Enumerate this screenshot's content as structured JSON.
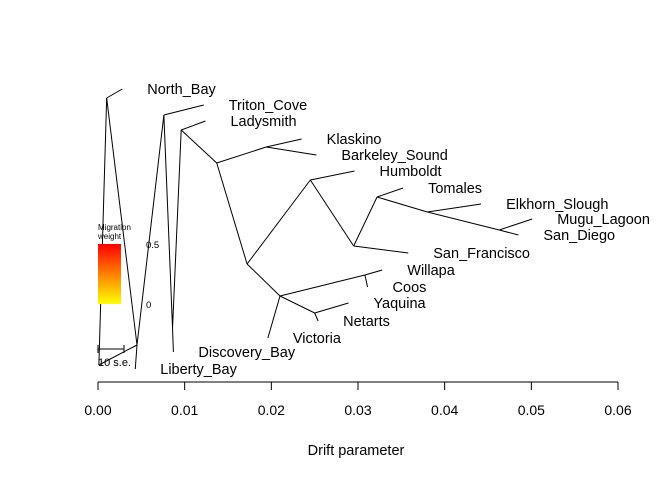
{
  "chart_data": {
    "type": "tree",
    "xlabel": "Drift parameter",
    "xlim": [
      0.0,
      0.06
    ],
    "x_ticks": [
      "0.00",
      "0.01",
      "0.02",
      "0.03",
      "0.04",
      "0.05",
      "0.06"
    ],
    "grid": false,
    "legend": {
      "title_line1": "Migration",
      "title_line2": "weight",
      "high_label": "0.5",
      "low_label": "0",
      "colors": [
        "#ff0000",
        "#ffff00"
      ]
    },
    "scale_bar_label": "10 s.e.",
    "tips": [
      {
        "name": "North_Bay",
        "drift": 0.0028
      },
      {
        "name": "Triton_Cove",
        "drift": 0.0122
      },
      {
        "name": "Ladysmith",
        "drift": 0.0124
      },
      {
        "name": "Klaskino",
        "drift": 0.0235
      },
      {
        "name": "Barkeley_Sound",
        "drift": 0.0252
      },
      {
        "name": "Humboldt",
        "drift": 0.0296
      },
      {
        "name": "Tomales",
        "drift": 0.0352
      },
      {
        "name": "Elkhorn_Slough",
        "drift": 0.0442
      },
      {
        "name": "Mugu_Lagoon",
        "drift": 0.0501
      },
      {
        "name": "San_Diego",
        "drift": 0.0485
      },
      {
        "name": "San_Francisco",
        "drift": 0.0358
      },
      {
        "name": "Willapa",
        "drift": 0.0328
      },
      {
        "name": "Coos",
        "drift": 0.0311
      },
      {
        "name": "Yaquina",
        "drift": 0.0289
      },
      {
        "name": "Netarts",
        "drift": 0.0254
      },
      {
        "name": "Victoria",
        "drift": 0.0196
      },
      {
        "name": "Discovery_Bay",
        "drift": 0.0087
      },
      {
        "name": "Liberty_Bay",
        "drift": 0.0043
      }
    ]
  }
}
